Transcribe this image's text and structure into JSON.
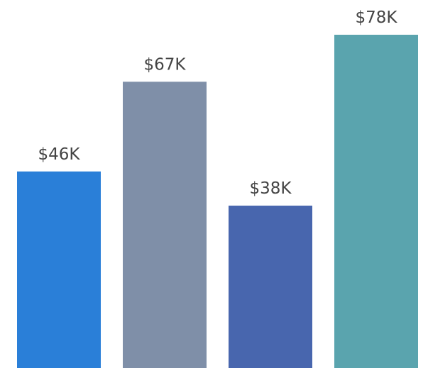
{
  "chart_data": {
    "type": "bar",
    "values": [
      46,
      67,
      38,
      78
    ],
    "value_labels": [
      "$46K",
      "$67K",
      "$38K",
      "$78K"
    ],
    "colors": [
      "#2a7fd8",
      "#7f8fa8",
      "#4866ae",
      "#5aa4ae"
    ]
  }
}
